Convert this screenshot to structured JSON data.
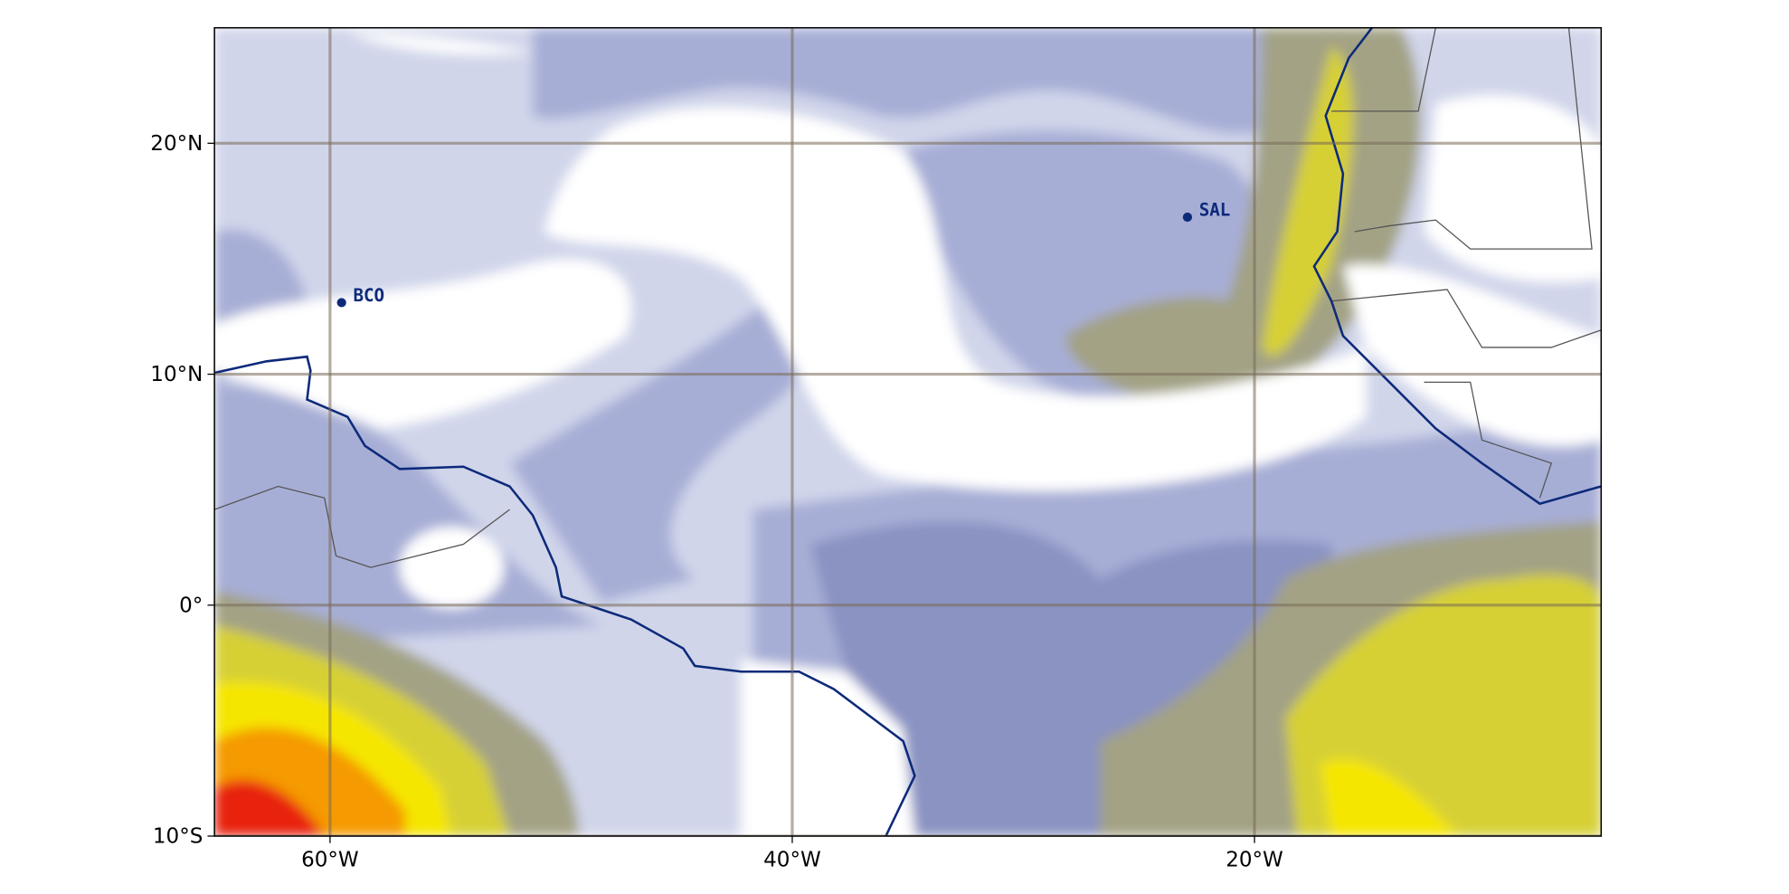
{
  "map": {
    "lon_range": [
      -65,
      -5
    ],
    "lat_range": [
      -10,
      25
    ],
    "lon_ticks": [
      {
        "value": -60,
        "label": "60°W"
      },
      {
        "value": -40,
        "label": "40°W"
      },
      {
        "value": -20,
        "label": "20°W"
      }
    ],
    "lat_ticks": [
      {
        "value": 20,
        "label": "20°N"
      },
      {
        "value": 10,
        "label": "10°N"
      },
      {
        "value": 0,
        "label": "0°"
      },
      {
        "value": -10,
        "label": "10°S"
      }
    ],
    "stations": [
      {
        "name": "BCO",
        "lon": -59.5,
        "lat": 13.1
      },
      {
        "name": "SAL",
        "lon": -22.9,
        "lat": 16.8
      }
    ]
  }
}
